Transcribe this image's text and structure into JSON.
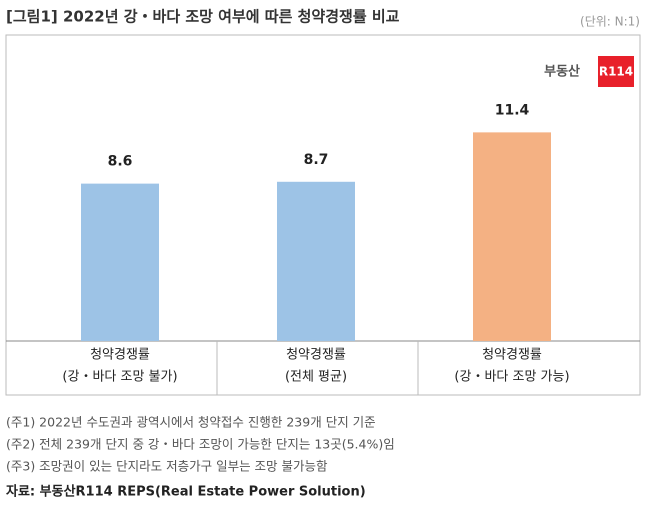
{
  "chart_data": {
    "type": "bar",
    "title": "[그림1] 2022년 강・바다 조망 여부에 따른 청약경쟁률 비교",
    "unit": "(단위: N:1)",
    "logo": {
      "text": "부동산",
      "badge": "R114"
    },
    "categories": [
      [
        "청약경쟁률",
        "(강・바다 조망 불가)"
      ],
      [
        "청약경쟁률",
        "(전체 평균)"
      ],
      [
        "청약경쟁률",
        "(강・바다 조망 가능)"
      ]
    ],
    "values": [
      8.6,
      8.7,
      11.4
    ],
    "colors": [
      "#9dc3e6",
      "#9dc3e6",
      "#f4b183"
    ],
    "notes": [
      "(주1) 2022년 수도권과 광역시에서 청약접수 진행한 239개 단지 기준",
      "(주2) 전체 239개 단지 중 강・바다 조망이 가능한 단지는 13곳(5.4%)임",
      "(주3) 조망권이 있는 단지라도 저층가구 일부는 조망 불가능함"
    ],
    "source": "자료: 부동산R114 REPS(Real Estate Power Solution)"
  }
}
